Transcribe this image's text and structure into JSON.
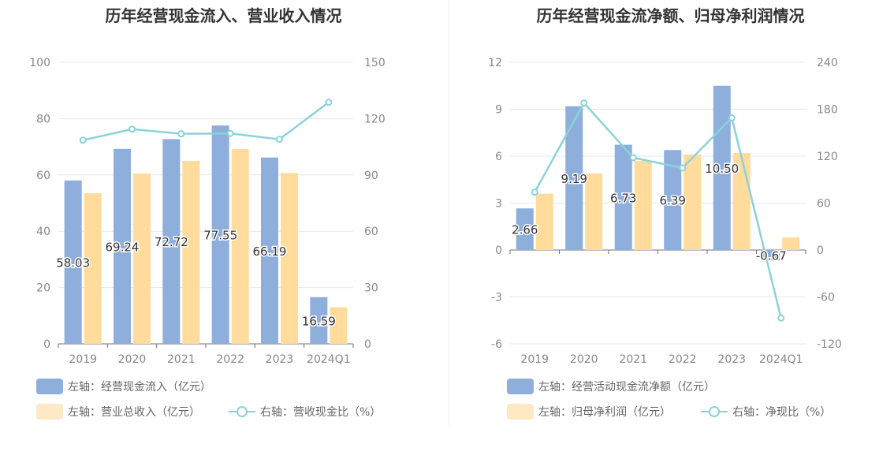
{
  "colors": {
    "bar_primary": "#8eaedb",
    "bar_secondary": "#ffdb9c",
    "line": "#8ad3d9",
    "grid": "#e4e7ef",
    "axis_text": "#888888"
  },
  "chart_data": [
    {
      "type": "bar",
      "title": "历年经营现金流入、营业收入情况",
      "categories": [
        "2019",
        "2020",
        "2021",
        "2022",
        "2023",
        "2024Q1"
      ],
      "y_left": {
        "min": 0,
        "max": 100,
        "ticks": [
          0,
          20,
          40,
          60,
          80,
          100
        ]
      },
      "y_right": {
        "min": 0,
        "max": 150,
        "ticks": [
          0,
          30,
          60,
          90,
          120,
          150
        ]
      },
      "series": [
        {
          "name": "左轴：经营现金流入（亿元）",
          "type": "bar",
          "axis": "left",
          "values": [
            58.03,
            69.24,
            72.72,
            77.55,
            66.19,
            16.59
          ],
          "labels": [
            "58.03",
            "69.24",
            "72.72",
            "77.55",
            "66.19",
            "16.59"
          ]
        },
        {
          "name": "左轴：营业总收入（亿元）",
          "type": "bar",
          "axis": "left",
          "values": [
            53.5,
            60.5,
            65.0,
            69.2,
            60.7,
            13.0
          ]
        },
        {
          "name": "右轴：营收现金比（%）",
          "type": "line",
          "axis": "right",
          "values": [
            108.5,
            114.4,
            111.9,
            112.1,
            109.0,
            128.7
          ]
        }
      ],
      "legend": {
        "position": "bottom-left"
      },
      "grid": true
    },
    {
      "type": "bar",
      "title": "历年经营现金流净额、归母净利润情况",
      "categories": [
        "2019",
        "2020",
        "2021",
        "2022",
        "2023",
        "2024Q1"
      ],
      "y_left": {
        "min": -6,
        "max": 12,
        "ticks": [
          -6,
          -3,
          0,
          3,
          6,
          9,
          12
        ]
      },
      "y_right": {
        "min": -120,
        "max": 240,
        "ticks": [
          -120,
          -60,
          0,
          60,
          120,
          180,
          240
        ]
      },
      "series": [
        {
          "name": "左轴：经营活动现金流净额（亿元）",
          "type": "bar",
          "axis": "left",
          "values": [
            2.66,
            9.19,
            6.73,
            6.39,
            10.5,
            -0.67
          ],
          "labels": [
            "2.66",
            "9.19",
            "6.73",
            "6.39",
            "10.50",
            "-0.67"
          ]
        },
        {
          "name": "左轴：归母净利润（亿元）",
          "type": "bar",
          "axis": "left",
          "values": [
            3.6,
            4.9,
            5.7,
            6.1,
            6.2,
            0.8
          ]
        },
        {
          "name": "右轴：净现比（%）",
          "type": "line",
          "axis": "right",
          "values": [
            74,
            188,
            118,
            105,
            169,
            -87
          ]
        }
      ],
      "legend": {
        "position": "bottom-left"
      },
      "grid": true
    }
  ]
}
